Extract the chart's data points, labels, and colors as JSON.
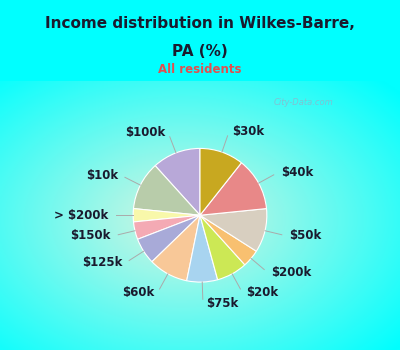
{
  "title_line1": "Income distribution in Wilkes-Barre,",
  "title_line2": "PA (%)",
  "subtitle": "All residents",
  "background_color": "#00ffff",
  "title_color": "#1a1a2e",
  "subtitle_color": "#e05050",
  "labels": [
    "$100k",
    "$10k",
    "> $200k",
    "$150k",
    "$125k",
    "$60k",
    "$75k",
    "$20k",
    "$200k",
    "$50k",
    "$40k",
    "$30k"
  ],
  "sizes": [
    11,
    11,
    3,
    4,
    6,
    9,
    7,
    7,
    4,
    10,
    12,
    10
  ],
  "colors": [
    "#b8a8d8",
    "#b8ccaa",
    "#f8f8aa",
    "#f4aab4",
    "#a8aad8",
    "#f8c898",
    "#a8d4f0",
    "#cce855",
    "#f8c070",
    "#d8cfc0",
    "#e88888",
    "#c8a820"
  ],
  "startangle": 90,
  "watermark": "City-Data.com",
  "label_fontsize": 8.5,
  "label_color": "#1a1a2e"
}
